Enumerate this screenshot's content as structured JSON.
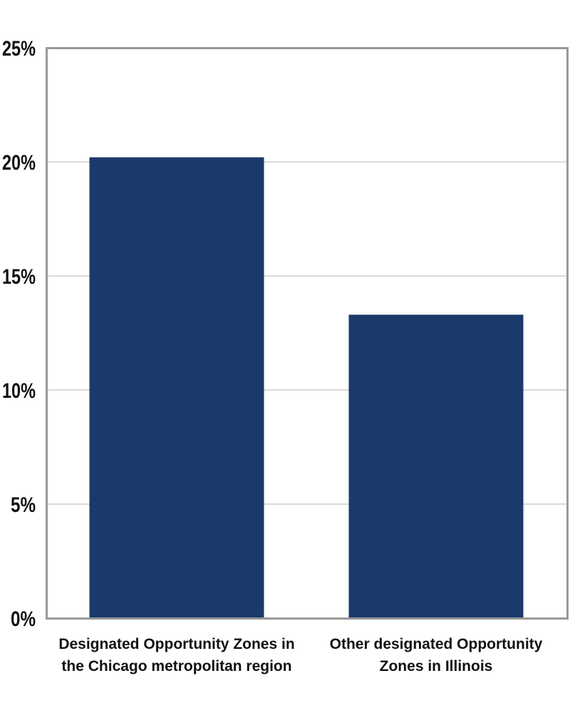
{
  "chart_data": {
    "type": "bar",
    "categories": [
      [
        "Designated Opportunity Zones in",
        "the Chicago metropolitan region"
      ],
      [
        "Other designated Opportunity",
        "Zones in Illinois"
      ]
    ],
    "values": [
      20.2,
      13.3
    ],
    "ylim": [
      0,
      25
    ],
    "yticks": [
      0,
      5,
      10,
      15,
      20,
      25
    ],
    "ytick_labels": [
      "0%",
      "5%",
      "10%",
      "15%",
      "20%",
      "25%"
    ],
    "grid": true,
    "bar_color": "#1b3a6b",
    "grid_color": "#b3b3b3",
    "frame_color": "#999999",
    "title": "",
    "xlabel": "",
    "ylabel": ""
  }
}
